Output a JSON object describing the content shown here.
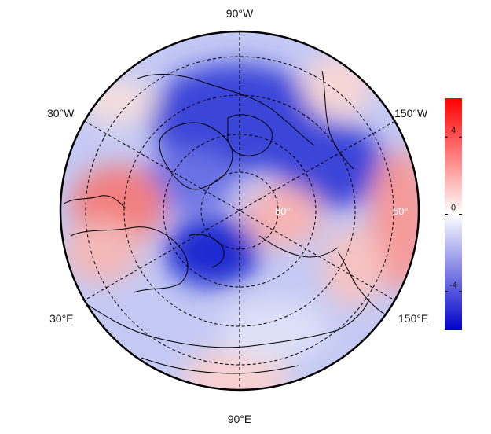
{
  "map": {
    "projection": "north-polar-stereographic",
    "longitude_labels": {
      "top": "90°W",
      "upper_left": "30°W",
      "upper_right": "150°W",
      "lower_left": "30°E",
      "lower_right": "150°E",
      "bottom": "90°E"
    },
    "latitude_labels": [
      "80°",
      "60°"
    ],
    "colors": {
      "negative": "#0000cc",
      "neutral": "#ffffff",
      "positive": "#ff0000",
      "gridline": "#000000"
    }
  },
  "colorbar": {
    "range": [
      -6,
      6
    ],
    "ticks": [
      {
        "value": 4,
        "label": "4"
      },
      {
        "value": 0,
        "label": "0"
      },
      {
        "value": -4,
        "label": "-4"
      }
    ]
  }
}
